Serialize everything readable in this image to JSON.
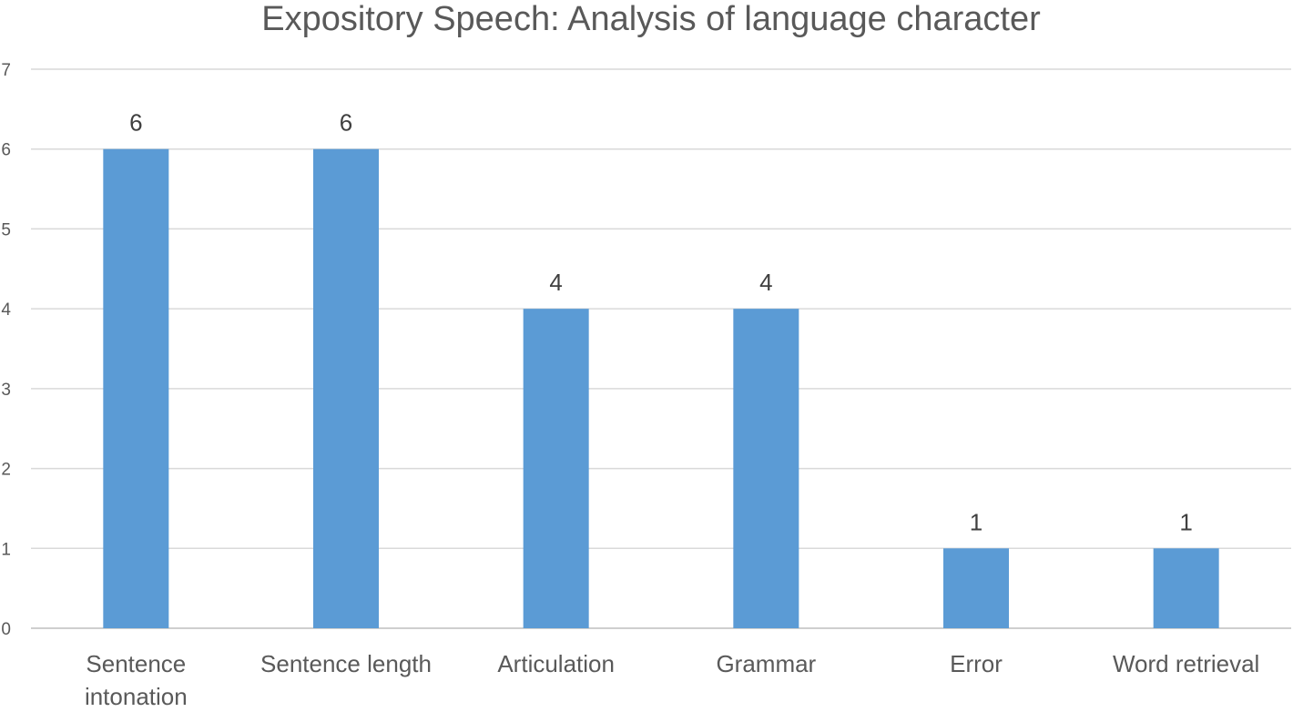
{
  "chart_data": {
    "type": "bar",
    "title": "Expository Speech: Analysis of language character",
    "categories": [
      [
        "Sentence",
        "intonation"
      ],
      [
        "Sentence length"
      ],
      [
        "Articulation"
      ],
      [
        "Grammar"
      ],
      [
        "Error"
      ],
      [
        "Word retrieval"
      ]
    ],
    "values": [
      6,
      6,
      4,
      4,
      1,
      1
    ],
    "data_labels": [
      "6",
      "6",
      "4",
      "4",
      "1",
      "1"
    ],
    "yticks": [
      "0",
      "1",
      "2",
      "3",
      "4",
      "5",
      "6",
      "7"
    ],
    "ylim": [
      0,
      7
    ],
    "xlabel": "",
    "ylabel": "",
    "grid": true,
    "legend": "none",
    "colors": {
      "bar": "#5b9bd5",
      "grid": "#d9d9d9",
      "text": "#595959"
    }
  }
}
